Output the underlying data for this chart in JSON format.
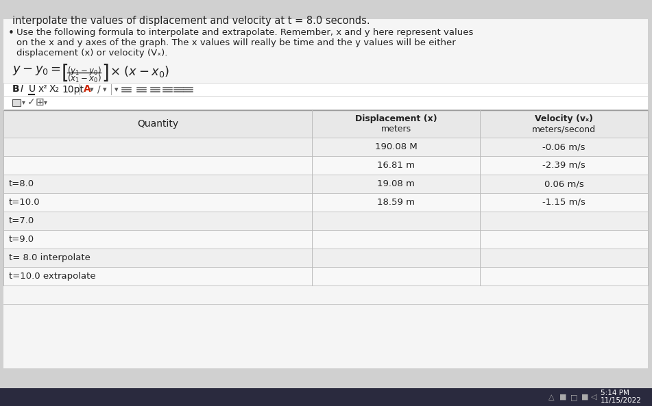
{
  "bg_color": "#d0d0d0",
  "content_bg": "#f5f5f5",
  "header_text": "interpolate the values of displacement and velocity at t = 8.0 seconds.",
  "bullet_line1": "Use the following formula to interpolate and extrapolate. Remember, x and y here represent values",
  "bullet_line2": "on the x and y axes of the graph. The x values will really be time and the y values will be either",
  "bullet_line3": "displacement (x) or velocity (Vₓ).",
  "table_header_col1": "Quantity",
  "table_header_col2_line1": "Displacement (x)",
  "table_header_col2_line2": "meters",
  "table_header_col3_line1": "Velocity (vₓ)",
  "table_header_col3_line2": "meters/second",
  "table_rows": [
    [
      "",
      "190.08 M",
      "-0.06 m/s"
    ],
    [
      "",
      "16.81 m",
      "-2.39 m/s"
    ],
    [
      "t=8.0",
      "19.08 m",
      "0.06 m/s"
    ],
    [
      "t=10.0",
      "18.59 m",
      "-1.15 m/s"
    ],
    [
      "t=7.0",
      "",
      ""
    ],
    [
      "t=9.0",
      "",
      ""
    ],
    [
      "t= 8.0 interpolate",
      "",
      ""
    ],
    [
      "t=10.0 extrapolate",
      "",
      ""
    ]
  ],
  "text_color": "#222222",
  "table_line_color": "#bbbbbb",
  "toolbar_bg": "#ffffff",
  "blue_accent": "#4a90d9",
  "taskbar_bg": "#2a2a3e",
  "taskbar_text": "#ffffff",
  "time_line1": "5:14 PM",
  "time_line2": "11/15/2022",
  "row_colors": [
    "#efefef",
    "#f8f8f8"
  ],
  "header_row_bg": "#e8e8e8"
}
